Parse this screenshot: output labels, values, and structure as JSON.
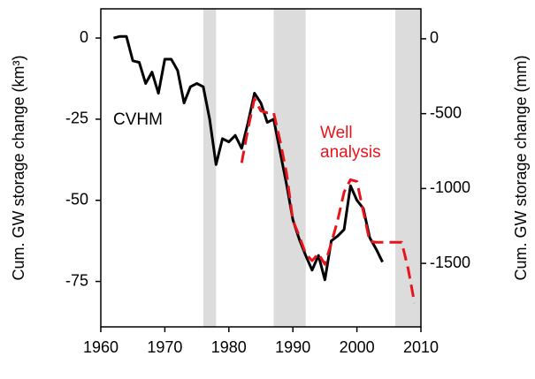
{
  "chart_data": {
    "type": "line",
    "x": [
      1962,
      1963,
      1964,
      1965,
      1966,
      1967,
      1968,
      1969,
      1970,
      1971,
      1972,
      1973,
      1974,
      1975,
      1976,
      1977,
      1978,
      1979,
      1980,
      1981,
      1982,
      1983,
      1984,
      1985,
      1986,
      1987,
      1988,
      1989,
      1990,
      1991,
      1992,
      1993,
      1994,
      1995,
      1996,
      1997,
      1998,
      1999,
      2000,
      2001,
      2002,
      2003,
      2004,
      2005,
      2006,
      2007,
      2008,
      2009
    ],
    "series": [
      {
        "name": "CVHM",
        "color": "#000000",
        "dashed": false,
        "axis": "y",
        "values": [
          0,
          0.5,
          0.5,
          -7,
          -7.5,
          -14,
          -10.5,
          -17,
          -6.5,
          -6.5,
          -10,
          -20,
          -15,
          -14,
          -15,
          -25,
          -39,
          -31,
          -32,
          -30,
          -34,
          -26,
          -17,
          -20,
          -26,
          -25,
          -35,
          -45,
          -56,
          -62,
          -67,
          -71.5,
          -67,
          -74.5,
          -62.5,
          -61,
          -59,
          -45.5,
          -50,
          -52.5,
          -61.5,
          -65,
          -69,
          null,
          null,
          null,
          null,
          null
        ]
      },
      {
        "name": "Well analysis",
        "color": "#e8141c",
        "dashed": true,
        "axis": "y2",
        "values": [
          null,
          null,
          null,
          null,
          null,
          null,
          null,
          null,
          null,
          null,
          null,
          null,
          null,
          null,
          null,
          null,
          null,
          null,
          null,
          null,
          -829,
          -600,
          -400,
          -482,
          -494,
          -494,
          -682,
          -894,
          -1212,
          -1318,
          -1435,
          -1482,
          -1435,
          -1506,
          -1365,
          -1212,
          -1024,
          -941,
          -953,
          -1153,
          -1353,
          -1359,
          -1359,
          -1359,
          -1359,
          -1359,
          -1535,
          -1765
        ]
      }
    ],
    "shaded_periods": [
      [
        1976,
        1978
      ],
      [
        1987,
        1992
      ],
      [
        2006,
        2010
      ]
    ],
    "shade_color": "#dcdcdc",
    "ylabel": "Cum. GW storage change (km³)",
    "y2label": "Cum. GW storage change (mm)",
    "xlim": [
      1960,
      2010
    ],
    "xticks": [
      1960,
      1970,
      1980,
      1990,
      2000,
      2010
    ],
    "ylim": [
      -89,
      9
    ],
    "yticks": [
      0,
      -25,
      -50,
      -75
    ],
    "y2lim": [
      -1924,
      200
    ],
    "y2ticks": [
      0,
      -500,
      -1000,
      -1500
    ]
  }
}
